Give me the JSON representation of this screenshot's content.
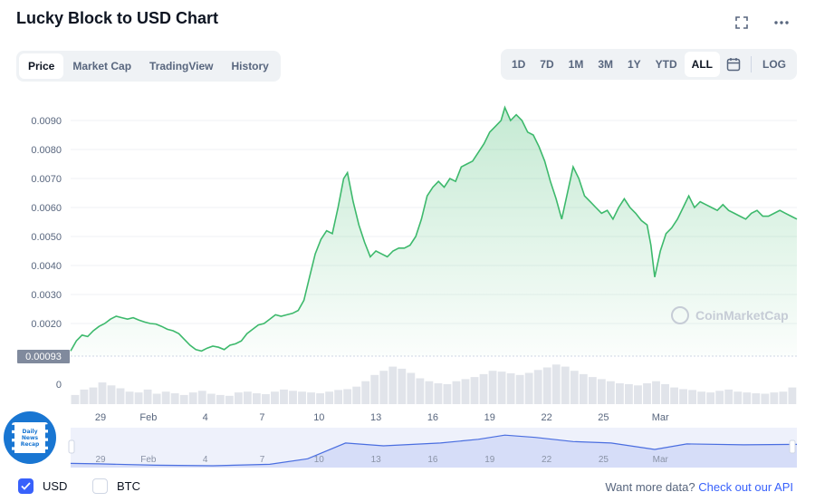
{
  "title": "Lucky Block to USD Chart",
  "icons": {
    "fullscreen": "fullscreen-icon",
    "more": "more-dots-icon",
    "calendar": "calendar-icon",
    "check": "check-icon"
  },
  "tabs": [
    {
      "label": "Price",
      "active": true
    },
    {
      "label": "Market Cap",
      "active": false
    },
    {
      "label": "TradingView",
      "active": false
    },
    {
      "label": "History",
      "active": false
    }
  ],
  "ranges": [
    {
      "label": "1D",
      "active": false
    },
    {
      "label": "7D",
      "active": false
    },
    {
      "label": "1M",
      "active": false
    },
    {
      "label": "3M",
      "active": false
    },
    {
      "label": "1Y",
      "active": false
    },
    {
      "label": "YTD",
      "active": false
    },
    {
      "label": "ALL",
      "active": true
    }
  ],
  "log_label": "LOG",
  "watermark": "CoinMarketCap",
  "badge_lines": [
    "Daily",
    "News",
    "Recap"
  ],
  "currencies": [
    {
      "label": "USD",
      "checked": true
    },
    {
      "label": "BTC",
      "checked": false
    }
  ],
  "more_data_text": "Want more data?",
  "more_data_link": "Check out our API",
  "colors": {
    "line": "#3db96c",
    "accent": "#3861fb",
    "volume": "#e1e4ea",
    "navigator": "#4a6ee0"
  },
  "chart_data": {
    "type": "area",
    "y_ticks": [
      "0.0090",
      "0.0080",
      "0.0070",
      "0.0060",
      "0.0050",
      "0.0040",
      "0.0030",
      "0.0020"
    ],
    "y_min_label": "0.00093",
    "volume_zero_label": "0",
    "x_ticks": [
      "29",
      "Feb",
      "4",
      "7",
      "10",
      "13",
      "16",
      "19",
      "22",
      "25",
      "Mar"
    ],
    "navigator_ticks": [
      "29",
      "Feb",
      "4",
      "7",
      "10",
      "13",
      "16",
      "19",
      "22",
      "25",
      "Mar"
    ],
    "ylim": [
      0.0009,
      0.0095
    ],
    "price_series": [
      [
        27.5,
        0.00105
      ],
      [
        27.8,
        0.0014
      ],
      [
        28.1,
        0.0016
      ],
      [
        28.4,
        0.00155
      ],
      [
        28.7,
        0.00175
      ],
      [
        29.0,
        0.0019
      ],
      [
        29.3,
        0.002
      ],
      [
        29.6,
        0.00215
      ],
      [
        29.9,
        0.00225
      ],
      [
        30.2,
        0.0022
      ],
      [
        30.5,
        0.00215
      ],
      [
        30.8,
        0.0022
      ],
      [
        31.1,
        0.00212
      ],
      [
        31.4,
        0.00205
      ],
      [
        31.7,
        0.002
      ],
      [
        32.0,
        0.00198
      ],
      [
        32.3,
        0.0019
      ],
      [
        32.6,
        0.0018
      ],
      [
        32.9,
        0.00175
      ],
      [
        33.2,
        0.00165
      ],
      [
        33.5,
        0.00145
      ],
      [
        33.8,
        0.00125
      ],
      [
        34.1,
        0.0011
      ],
      [
        34.4,
        0.00105
      ],
      [
        34.7,
        0.00115
      ],
      [
        35.0,
        0.00122
      ],
      [
        35.3,
        0.00118
      ],
      [
        35.6,
        0.0011
      ],
      [
        35.9,
        0.00125
      ],
      [
        36.2,
        0.0013
      ],
      [
        36.5,
        0.0014
      ],
      [
        36.8,
        0.00165
      ],
      [
        37.1,
        0.0018
      ],
      [
        37.4,
        0.00195
      ],
      [
        37.7,
        0.002
      ],
      [
        38.0,
        0.00215
      ],
      [
        38.3,
        0.0023
      ],
      [
        38.6,
        0.00225
      ],
      [
        38.9,
        0.0023
      ],
      [
        39.2,
        0.00235
      ],
      [
        39.5,
        0.00245
      ],
      [
        39.8,
        0.0028
      ],
      [
        40.1,
        0.0036
      ],
      [
        40.4,
        0.0044
      ],
      [
        40.7,
        0.0049
      ],
      [
        41.0,
        0.0052
      ],
      [
        41.3,
        0.0051
      ],
      [
        41.6,
        0.006
      ],
      [
        41.9,
        0.007
      ],
      [
        42.1,
        0.0072
      ],
      [
        42.4,
        0.0062
      ],
      [
        42.7,
        0.0054
      ],
      [
        43.0,
        0.0048
      ],
      [
        43.3,
        0.0043
      ],
      [
        43.6,
        0.0045
      ],
      [
        43.9,
        0.0044
      ],
      [
        44.2,
        0.0043
      ],
      [
        44.5,
        0.0045
      ],
      [
        44.8,
        0.0046
      ],
      [
        45.1,
        0.0046
      ],
      [
        45.4,
        0.0047
      ],
      [
        45.7,
        0.005
      ],
      [
        46.0,
        0.0056
      ],
      [
        46.3,
        0.0064
      ],
      [
        46.6,
        0.0067
      ],
      [
        46.9,
        0.0069
      ],
      [
        47.2,
        0.0067
      ],
      [
        47.5,
        0.007
      ],
      [
        47.8,
        0.0069
      ],
      [
        48.1,
        0.0074
      ],
      [
        48.4,
        0.0075
      ],
      [
        48.7,
        0.0076
      ],
      [
        49.0,
        0.0079
      ],
      [
        49.3,
        0.0082
      ],
      [
        49.6,
        0.0086
      ],
      [
        49.9,
        0.0088
      ],
      [
        50.2,
        0.009
      ],
      [
        50.4,
        0.00945
      ],
      [
        50.7,
        0.009
      ],
      [
        51.0,
        0.0092
      ],
      [
        51.3,
        0.009
      ],
      [
        51.6,
        0.0086
      ],
      [
        51.9,
        0.0085
      ],
      [
        52.2,
        0.0081
      ],
      [
        52.5,
        0.0076
      ],
      [
        52.8,
        0.0069
      ],
      [
        53.1,
        0.0063
      ],
      [
        53.4,
        0.0056
      ],
      [
        53.7,
        0.0065
      ],
      [
        54.0,
        0.0074
      ],
      [
        54.3,
        0.007
      ],
      [
        54.6,
        0.0064
      ],
      [
        54.9,
        0.0062
      ],
      [
        55.2,
        0.006
      ],
      [
        55.5,
        0.0058
      ],
      [
        55.8,
        0.0059
      ],
      [
        56.1,
        0.0056
      ],
      [
        56.4,
        0.006
      ],
      [
        56.7,
        0.0063
      ],
      [
        57.0,
        0.006
      ],
      [
        57.3,
        0.0058
      ],
      [
        57.6,
        0.00555
      ],
      [
        57.9,
        0.0054
      ],
      [
        58.1,
        0.0047
      ],
      [
        58.3,
        0.0036
      ],
      [
        58.6,
        0.0045
      ],
      [
        58.9,
        0.0051
      ],
      [
        59.2,
        0.0053
      ],
      [
        59.5,
        0.0056
      ],
      [
        59.8,
        0.006
      ],
      [
        60.1,
        0.0064
      ],
      [
        60.4,
        0.006
      ],
      [
        60.7,
        0.0062
      ],
      [
        61.0,
        0.0061
      ],
      [
        61.3,
        0.006
      ],
      [
        61.6,
        0.0059
      ],
      [
        61.9,
        0.0061
      ],
      [
        62.2,
        0.0059
      ],
      [
        62.5,
        0.0058
      ],
      [
        62.8,
        0.0057
      ],
      [
        63.1,
        0.0056
      ],
      [
        63.4,
        0.0058
      ],
      [
        63.7,
        0.0059
      ],
      [
        64.0,
        0.0057
      ],
      [
        64.3,
        0.0057
      ],
      [
        64.6,
        0.0058
      ],
      [
        64.9,
        0.0059
      ],
      [
        65.2,
        0.0058
      ],
      [
        65.5,
        0.0057
      ],
      [
        65.8,
        0.0056
      ]
    ],
    "navigator_series": [
      [
        27.5,
        0.0018
      ],
      [
        29.0,
        0.0017
      ],
      [
        32.0,
        0.0014
      ],
      [
        35.0,
        0.0013
      ],
      [
        38.0,
        0.0016
      ],
      [
        40.0,
        0.0028
      ],
      [
        42.0,
        0.0062
      ],
      [
        44.0,
        0.0056
      ],
      [
        47.0,
        0.0062
      ],
      [
        49.0,
        0.007
      ],
      [
        50.4,
        0.0079
      ],
      [
        52.0,
        0.0074
      ],
      [
        54.0,
        0.0065
      ],
      [
        56.0,
        0.0062
      ],
      [
        58.3,
        0.0048
      ],
      [
        60.0,
        0.006
      ],
      [
        63.0,
        0.0058
      ],
      [
        65.8,
        0.0059
      ]
    ],
    "volume_series": [
      0.22,
      0.35,
      0.4,
      0.52,
      0.45,
      0.38,
      0.3,
      0.28,
      0.35,
      0.25,
      0.3,
      0.26,
      0.22,
      0.28,
      0.32,
      0.25,
      0.22,
      0.2,
      0.28,
      0.3,
      0.26,
      0.24,
      0.3,
      0.35,
      0.32,
      0.3,
      0.28,
      0.26,
      0.3,
      0.34,
      0.36,
      0.42,
      0.55,
      0.7,
      0.8,
      0.9,
      0.85,
      0.75,
      0.62,
      0.55,
      0.5,
      0.48,
      0.55,
      0.6,
      0.65,
      0.72,
      0.8,
      0.78,
      0.74,
      0.7,
      0.75,
      0.82,
      0.88,
      0.95,
      0.9,
      0.8,
      0.72,
      0.65,
      0.6,
      0.55,
      0.5,
      0.48,
      0.45,
      0.5,
      0.55,
      0.48,
      0.4,
      0.36,
      0.34,
      0.3,
      0.28,
      0.32,
      0.35,
      0.3,
      0.28,
      0.26,
      0.25,
      0.28,
      0.3,
      0.4
    ]
  }
}
